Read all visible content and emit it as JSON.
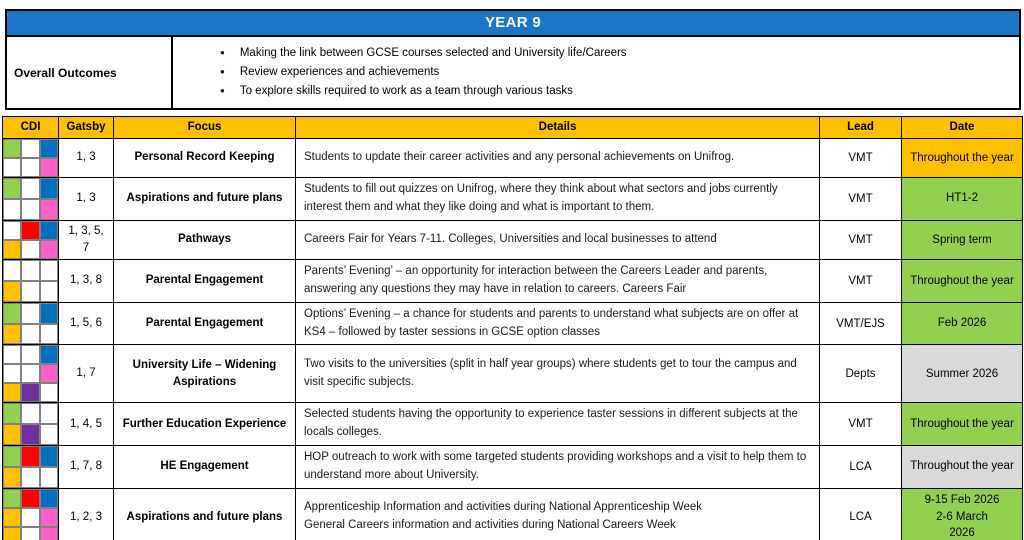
{
  "header": {
    "title": "YEAR 9"
  },
  "outcomes": {
    "label": "Overall Outcomes",
    "bullet_icon": "●",
    "items": [
      "Making the link between GCSE courses selected and University life/Careers",
      "Review experiences and achievements",
      "To explore skills required to work as a team through various tasks"
    ]
  },
  "table": {
    "headers": [
      "CDI",
      "Gatsby",
      "Focus",
      "Details",
      "Lead",
      "Date"
    ],
    "rows": [
      {
        "cdi": [
          [
            "green",
            "white",
            "blue"
          ],
          [
            "white",
            "white",
            "pink"
          ]
        ],
        "gatsby": "1, 3",
        "focus": "Personal Record Keeping",
        "details": "Students to update their career activities and any personal achievements on Unifrog.",
        "lead": "VMT",
        "date": "Throughout the year",
        "date_color": "orange"
      },
      {
        "cdi": [
          [
            "green",
            "white",
            "blue"
          ],
          [
            "white",
            "white",
            "pink"
          ]
        ],
        "gatsby": "1, 3",
        "focus": "Aspirations and future plans",
        "details": "Students to fill out quizzes on Unifrog, where they think about what sectors and jobs currently interest them and what they like doing and what is important to them.",
        "lead": "VMT",
        "date": "HT1-2",
        "date_color": "green"
      },
      {
        "cdi": [
          [
            "white",
            "red",
            "blue"
          ],
          [
            "orange",
            "white",
            "pink"
          ]
        ],
        "gatsby": "1, 3, 5, 7",
        "focus": "Pathways",
        "details": "Careers Fair for Years 7-11. Colleges, Universities and local businesses to attend",
        "lead": "VMT",
        "date": "Spring term",
        "date_color": "green"
      },
      {
        "cdi": [
          [
            "white",
            "white",
            "white"
          ],
          [
            "orange",
            "white",
            "white"
          ]
        ],
        "gatsby": "1, 3, 8",
        "focus": "Parental Engagement",
        "details": "Parents’ Evening’ – an opportunity for interaction between the Careers Leader and parents, answering any questions they may have in relation to careers. Careers Fair",
        "lead": "VMT",
        "date": "Throughout the year",
        "date_color": "green"
      },
      {
        "cdi": [
          [
            "green",
            "white",
            "blue"
          ],
          [
            "orange",
            "white",
            "white"
          ]
        ],
        "gatsby": "1, 5, 6",
        "focus": "Parental Engagement",
        "details": "Options’ Evening – a chance for students and parents to understand what subjects are on offer at KS4 – followed by taster sessions in GCSE option classes",
        "lead": "VMT/EJS",
        "date": "Feb 2026",
        "date_color": "green"
      },
      {
        "cdi": [
          [
            "white",
            "white",
            "blue"
          ],
          [
            "white",
            "white",
            "pink"
          ],
          [
            "orange",
            "purple",
            "white"
          ]
        ],
        "gatsby": "1, 7",
        "focus": "University Life – Widening Aspirations",
        "details": "Two visits to the universities (split in half year groups) where students get to tour the campus and visit specific subjects.",
        "lead": "Depts",
        "date": "Summer 2026",
        "date_color": "grey"
      },
      {
        "cdi": [
          [
            "green",
            "white",
            "white"
          ],
          [
            "orange",
            "purple",
            "white"
          ]
        ],
        "gatsby": "1, 4, 5",
        "focus": "Further Education Experience",
        "details": "Selected students having the opportunity to experience taster sessions in different subjects at the locals colleges.",
        "lead": "VMT",
        "date": "Throughout the year",
        "date_color": "green"
      },
      {
        "cdi": [
          [
            "green",
            "red",
            "blue"
          ],
          [
            "orange",
            "white",
            "white"
          ]
        ],
        "gatsby": "1, 7, 8",
        "focus": "HE Engagement",
        "details": "HOP outreach to work with some targeted students providing workshops and a visit to help them to understand more about University.",
        "lead": "LCA",
        "date": "Throughout the year",
        "date_color": "grey"
      },
      {
        "cdi": [
          [
            "green",
            "red",
            "blue"
          ],
          [
            "orange",
            "white",
            "pink"
          ],
          [
            "orange",
            "white",
            "pink"
          ]
        ],
        "gatsby": "1, 2, 3",
        "focus": "Aspirations and future plans",
        "details": "Apprenticeship Information and activities during National Apprenticeship Week\nGeneral Careers information and activities during National Careers Week",
        "lead": "LCA",
        "date": "9-15 Feb 2026\n2-6 March\n2026",
        "date_color": "green"
      }
    ]
  },
  "colors": {
    "header_blue": "#1B76C8",
    "gold": "#FFC000",
    "green": "#92D050",
    "grey": "#D9D9D9",
    "orange": "#FFC000",
    "blue": "#0070C0",
    "pink": "#FF5FC8",
    "red": "#FF0000",
    "purple": "#7030A0",
    "white": "#FFFFFF"
  }
}
